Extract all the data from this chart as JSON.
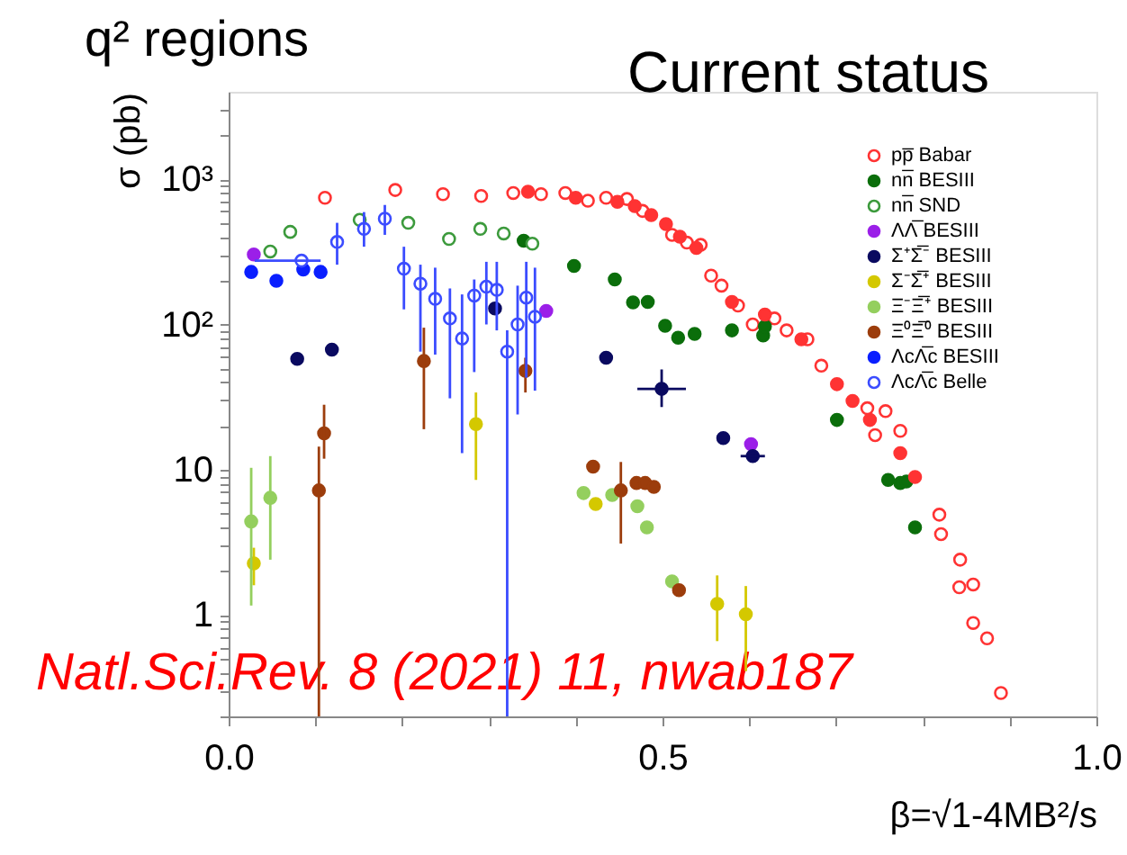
{
  "chart_data": {
    "type": "scatter",
    "title": "q² regions",
    "xlabel": "β=√1-4MB²/s",
    "ylabel": "σ (pb)",
    "annotations": [
      "Current status",
      "Natl.Sci.Rev. 8 (2021) 11, nwab187"
    ],
    "xlim": [
      0,
      1
    ],
    "ylim": [
      0.2,
      4000
    ],
    "log": "y",
    "grid": false,
    "legend": "top right",
    "marker": "circle",
    "xticks": [
      {
        "value": 0,
        "label": "0.0"
      },
      {
        "value": 0.1,
        "label": null
      },
      {
        "value": 0.2,
        "label": null
      },
      {
        "value": 0.3,
        "label": null
      },
      {
        "value": 0.4,
        "label": null
      },
      0.5,
      {
        "value": 0.6,
        "label": null
      },
      {
        "value": 0.7,
        "label": null
      },
      {
        "value": 0.8,
        "label": null
      },
      {
        "value": 0.9,
        "label": null
      },
      {
        "value": 1,
        "label": "1.0"
      }
    ],
    "yticks": [
      {
        "value": 0.2,
        "label": null
      },
      {
        "value": 0.3,
        "label": null
      },
      {
        "value": 0.4,
        "label": null
      },
      {
        "value": 0.5,
        "label": null
      },
      {
        "value": 0.6,
        "label": null
      },
      {
        "value": 0.7,
        "label": null
      },
      {
        "value": 0.8,
        "label": null
      },
      {
        "value": 0.9,
        "label": null
      },
      1,
      {
        "value": 2,
        "label": null
      },
      {
        "value": 3,
        "label": null
      },
      {
        "value": 4,
        "label": null
      },
      {
        "value": 5,
        "label": null
      },
      {
        "value": 6,
        "label": null
      },
      {
        "value": 7,
        "label": null
      },
      {
        "value": 8,
        "label": null
      },
      {
        "value": 9,
        "label": null
      },
      10,
      {
        "value": 20,
        "label": null
      },
      {
        "value": 30,
        "label": null
      },
      {
        "value": 40,
        "label": null
      },
      {
        "value": 50,
        "label": null
      },
      {
        "value": 60,
        "label": null
      },
      {
        "value": 70,
        "label": null
      },
      {
        "value": 80,
        "label": null
      },
      {
        "value": 90,
        "label": null
      },
      {
        "value": 100,
        "label": "10²"
      },
      {
        "value": 200,
        "label": null
      },
      {
        "value": 300,
        "label": null
      },
      {
        "value": 400,
        "label": null
      },
      {
        "value": 500,
        "label": null
      },
      {
        "value": 600,
        "label": null
      },
      {
        "value": 700,
        "label": null
      },
      {
        "value": 800,
        "label": null
      },
      {
        "value": 900,
        "label": null
      },
      {
        "value": 1000,
        "label": "10³"
      },
      {
        "value": 2000,
        "label": null
      },
      {
        "value": 3000,
        "label": null
      }
    ],
    "series": [
      {
        "name": "pp̅ Babar",
        "color": "#ff3333",
        "marker": "circle-open",
        "x": [
          0.111,
          0.192,
          0.247,
          0.291,
          0.328,
          0.36,
          0.388,
          0.414,
          0.435,
          0.459,
          0.477,
          0.511,
          0.528,
          0.544,
          0.556,
          0.568,
          0.587,
          0.604,
          0.629,
          0.643,
          0.667,
          0.683,
          0.736,
          0.745,
          0.757,
          0.774,
          0.819,
          0.821,
          0.842,
          0.843,
          0.858,
          0.858,
          0.874,
          0.89
        ],
        "values": [
          745,
          843,
          789,
          767,
          804,
          789,
          804,
          711,
          745,
          731,
          605,
          414,
          366,
          353,
          217,
          185,
          135,
          100,
          110,
          91,
          79,
          52,
          26.5,
          17.3,
          25.3,
          18.5,
          4.9,
          3.6,
          1.55,
          2.4,
          1.62,
          0.88,
          0.69,
          0.29
        ]
      },
      {
        "color": "#ff3333",
        "x": [
          0.345,
          0.4,
          0.448,
          0.468,
          0.487,
          0.504,
          0.52,
          0.539,
          0.58,
          0.618,
          0.66,
          0.701,
          0.719,
          0.739,
          0.774,
          0.791
        ],
        "values": [
          820,
          745,
          698,
          653,
          566,
          491,
          402,
          336,
          143,
          117,
          79,
          38.8,
          29.7,
          22.0,
          13.0,
          8.9
        ]
      },
      {
        "name": "nn̅ BESIII",
        "color": "#0b6e0b",
        "x": [
          0.34,
          0.398,
          0.445,
          0.466,
          0.483,
          0.503,
          0.518,
          0.537,
          0.58,
          0.616,
          0.618,
          0.701,
          0.76,
          0.774,
          0.781,
          0.791
        ],
        "values": [
          377,
          253,
          204,
          142,
          143,
          98,
          81,
          86,
          91,
          84,
          97,
          22,
          8.5,
          8.1,
          8.3,
          4.0
        ]
      },
      {
        "name": "nn̅ SND",
        "color": "#3c9a3c",
        "marker": "circle-open",
        "x": [
          0.048,
          0.071,
          0.151,
          0.207,
          0.254,
          0.29,
          0.317,
          0.35
        ],
        "values": [
          318,
          434,
          525,
          501,
          388,
          455,
          423,
          360
        ]
      },
      {
        "name": "ΛΛ̅ BESIII",
        "color": "#9b1fe8",
        "x": [
          0.029,
          0.366,
          0.602
        ],
        "values": [
          303,
          124,
          15.0
        ]
      },
      {
        "name": "Σ⁺Σ̅⁻ BESIII",
        "color": "#0a0a60",
        "x": [
          0.079,
          0.119,
          0.307,
          0.435,
          0.499,
          0.57,
          0.604
        ],
        "values": [
          58,
          67,
          129,
          59,
          36,
          16.5,
          12.4
        ],
        "errors": [
          null,
          null,
          null,
          null,
          [
            27,
            49
          ],
          null,
          null
        ],
        "xerrors": [
          null,
          null,
          null,
          null,
          [
            0.471,
            0.527
          ],
          null,
          [
            0.59,
            0.618
          ]
        ]
      },
      {
        "name": "Σ⁻Σ̅⁺ BESIII",
        "color": "#d4c800",
        "x": [
          0.029,
          0.285,
          0.423,
          0.563,
          0.596
        ],
        "values": [
          2.26,
          20.6,
          5.8,
          1.19,
          1.01
        ],
        "errors": [
          [
            1.6,
            2.9
          ],
          [
            8.5,
            34
          ],
          null,
          [
            0.66,
            1.87
          ],
          [
            0.41,
            1.58
          ]
        ]
      },
      {
        "name": "Ξ⁻Ξ̅⁺ BESIII",
        "color": "#94cf5e",
        "x": [
          0.026,
          0.048,
          0.409,
          0.442,
          0.471,
          0.482,
          0.511
        ],
        "values": [
          4.4,
          6.4,
          6.9,
          6.7,
          5.6,
          4.0,
          1.7
        ],
        "errors": [
          [
            1.16,
            10.3
          ],
          [
            2.4,
            12.4
          ],
          null,
          null,
          null,
          null,
          null
        ]
      },
      {
        "name": "Ξ⁰Ξ̅⁰ BESIII",
        "color": "#9c3d0c",
        "x": [
          0.104,
          0.11,
          0.225,
          0.342,
          0.42,
          0.452,
          0.47,
          0.48,
          0.49,
          0.519
        ],
        "values": [
          7.2,
          17.8,
          56,
          48,
          10.5,
          7.2,
          8.1,
          8.1,
          7.6,
          1.48
        ],
        "errors": [
          [
            0.2,
            14.4
          ],
          [
            11.9,
            28
          ],
          [
            19,
            95
          ],
          [
            34,
            59
          ],
          null,
          [
            3.1,
            11.3
          ],
          null,
          null,
          null,
          null
        ]
      },
      {
        "name": "ΛcΛ̅c BESIII",
        "color": "#0a1fff",
        "x": [
          0.026,
          0.055,
          0.086,
          0.106
        ],
        "values": [
          230,
          200,
          239,
          230
        ]
      },
      {
        "name": "ΛcΛ̅c Belle",
        "color": "#3b4cff",
        "marker": "circle-open",
        "x": [
          0.084,
          0.125,
          0.156,
          0.18,
          0.202,
          0.221,
          0.238,
          0.255,
          0.269,
          0.283,
          0.297,
          0.309,
          0.321,
          0.333,
          0.343,
          0.353
        ],
        "values": [
          275,
          370,
          455,
          535,
          242,
          191,
          150,
          110,
          80,
          158,
          182,
          173,
          65,
          100,
          153,
          113
        ],
        "errors": [
          null,
          [
            258,
            501
          ],
          [
            343,
            594
          ],
          [
            414,
            665
          ],
          [
            127,
            343
          ],
          [
            65,
            258
          ],
          [
            62,
            246
          ],
          [
            31,
            177
          ],
          [
            13,
            161
          ],
          [
            47,
            204
          ],
          [
            100,
            270
          ],
          [
            91,
            270
          ],
          [
            0.2,
            91
          ],
          [
            24,
            185
          ],
          [
            43,
            270
          ],
          [
            35,
            246
          ]
        ],
        "xerrors": [
          [
            0.03,
            0.106
          ],
          null,
          null,
          null,
          null,
          null,
          null,
          null,
          null,
          null,
          null,
          null,
          null,
          null,
          null,
          null
        ]
      }
    ]
  }
}
